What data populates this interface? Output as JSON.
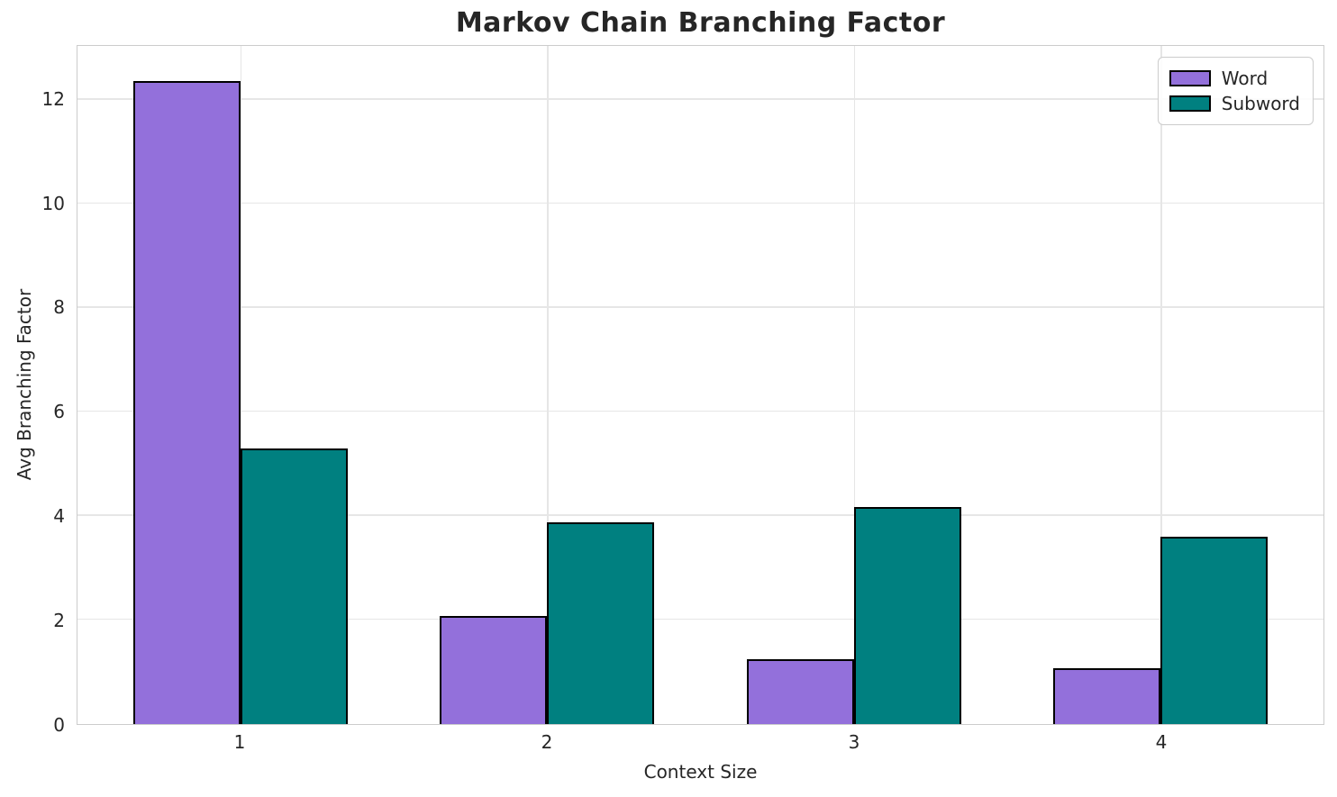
{
  "chart_data": {
    "type": "bar",
    "title": "Markov Chain Branching Factor",
    "xlabel": "Context Size",
    "ylabel": "Avg Branching Factor",
    "categories": [
      "1",
      "2",
      "3",
      "4"
    ],
    "series": [
      {
        "name": "Word",
        "color": "#9370db",
        "edge_color": "#000000",
        "values": [
          12.35,
          2.08,
          1.25,
          1.08
        ]
      },
      {
        "name": "Subword",
        "color": "#008080",
        "edge_color": "#000000",
        "values": [
          5.3,
          3.88,
          4.17,
          3.6
        ]
      }
    ],
    "ylim": [
      0,
      13.03
    ],
    "yticks": [
      0,
      2,
      4,
      6,
      8,
      10,
      12
    ],
    "grid": true,
    "grid_color": "#e6e6e6",
    "spine_color": "#cccccc",
    "text_color": "#262626",
    "legend_position": "upper right",
    "bar_width": 0.35
  }
}
